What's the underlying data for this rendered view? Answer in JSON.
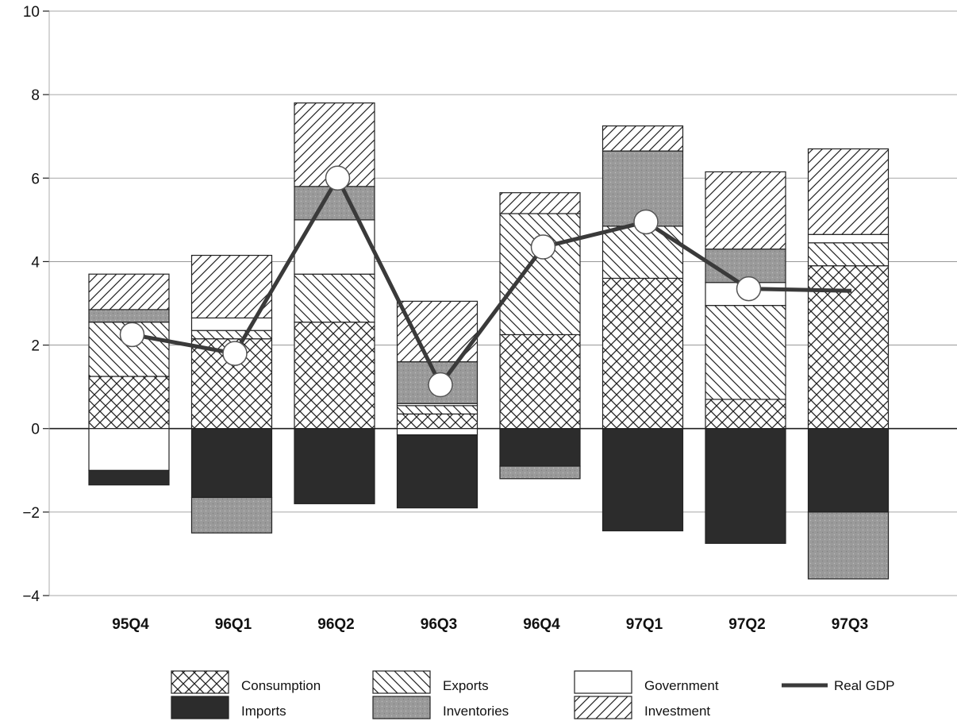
{
  "chart_data": {
    "type": "bar",
    "stacked": true,
    "categories": [
      "95Q4",
      "96Q1",
      "96Q2",
      "96Q3",
      "96Q4",
      "97Q1",
      "97Q2",
      "97Q3"
    ],
    "ylim": [
      -4,
      10
    ],
    "yticks": [
      10,
      8,
      6,
      4,
      2,
      0,
      -2,
      -4
    ],
    "ytick_labels": [
      "10",
      "8",
      "6",
      "4",
      "2",
      "0",
      "−2",
      "−4"
    ],
    "grid": true,
    "series": [
      {
        "name": "Consumption",
        "pattern": "crosshatch",
        "color": "#ffffff",
        "values": [
          1.25,
          2.15,
          2.55,
          0.35,
          2.25,
          3.6,
          0.7,
          3.9
        ]
      },
      {
        "name": "Exports",
        "pattern": "backslash",
        "color": "#ffffff",
        "values": [
          1.3,
          0.2,
          1.15,
          0.2,
          2.9,
          1.25,
          2.25,
          0.55
        ]
      },
      {
        "name": "Government",
        "pattern": "none",
        "color": "#ffffff",
        "values": [
          0.0,
          0.3,
          1.3,
          0.05,
          0.0,
          0.0,
          0.55,
          0.2
        ]
      },
      {
        "name": "Imports",
        "pattern": "solid",
        "color": "#2c2c2c",
        "values": [
          -0.35,
          -1.65,
          -1.8,
          -1.75,
          -0.9,
          -2.45,
          -2.75,
          -2.0
        ]
      },
      {
        "name": "Inventories",
        "pattern": "stipple",
        "color": "#9c9c9c",
        "values": [
          0.3,
          -0.85,
          0.8,
          1.0,
          -0.3,
          1.8,
          0.8,
          -1.6
        ]
      },
      {
        "name": "Investment",
        "pattern": "slash",
        "color": "#ffffff",
        "values": [
          0.85,
          1.5,
          2.0,
          1.45,
          0.5,
          0.6,
          1.85,
          2.05
        ]
      }
    ],
    "negative_extra": {
      "Government": [
        -1.0,
        0.0,
        0.0,
        -0.15,
        0.0,
        0.0,
        0.0,
        0.0
      ]
    },
    "line": {
      "name": "Real GDP",
      "color": "#3a3a3a",
      "values": [
        2.25,
        1.8,
        6.0,
        1.05,
        4.35,
        4.95,
        3.35,
        3.3
      ]
    },
    "legend": {
      "placement": "bottom",
      "items": [
        {
          "label": "Consumption",
          "pattern": "crosshatch"
        },
        {
          "label": "Exports",
          "pattern": "backslash"
        },
        {
          "label": "Government",
          "pattern": "none"
        },
        {
          "label": "Real GDP",
          "pattern": "line"
        },
        {
          "label": "Imports",
          "pattern": "solid"
        },
        {
          "label": "Inventories",
          "pattern": "stipple"
        },
        {
          "label": "Investment",
          "pattern": "slash"
        }
      ]
    }
  }
}
